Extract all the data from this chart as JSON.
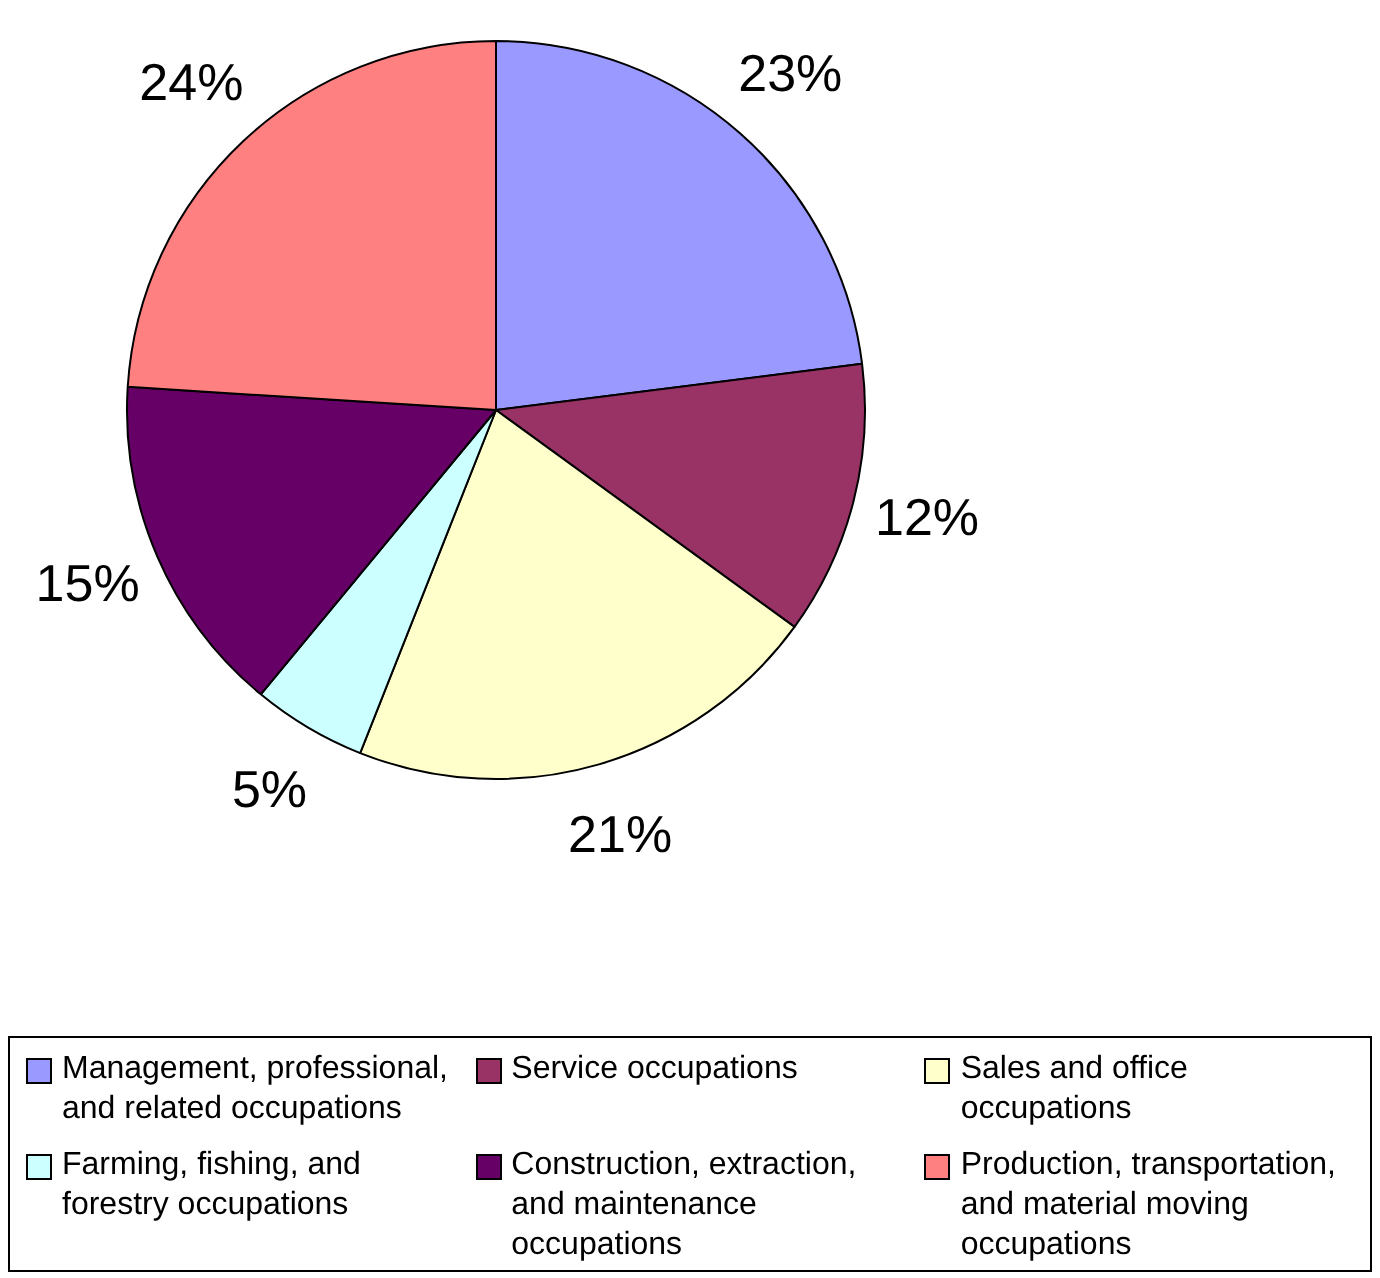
{
  "chart_data": {
    "type": "pie",
    "categories": [
      "Management, professional, and related occupations",
      "Service occupations",
      "Sales and office occupations",
      "Farming, fishing, and forestry occupations",
      "Construction, extraction, and maintenance occupations",
      "Production, transportation, and material moving occupations"
    ],
    "values": [
      23,
      12,
      21,
      5,
      15,
      24
    ],
    "value_labels": [
      "23%",
      "12%",
      "21%",
      "5%",
      "15%",
      "24%"
    ],
    "colors": [
      "#9999ff",
      "#993366",
      "#ffffcc",
      "#ccffff",
      "#660066",
      "#ff8080"
    ],
    "legend": "bottom"
  }
}
